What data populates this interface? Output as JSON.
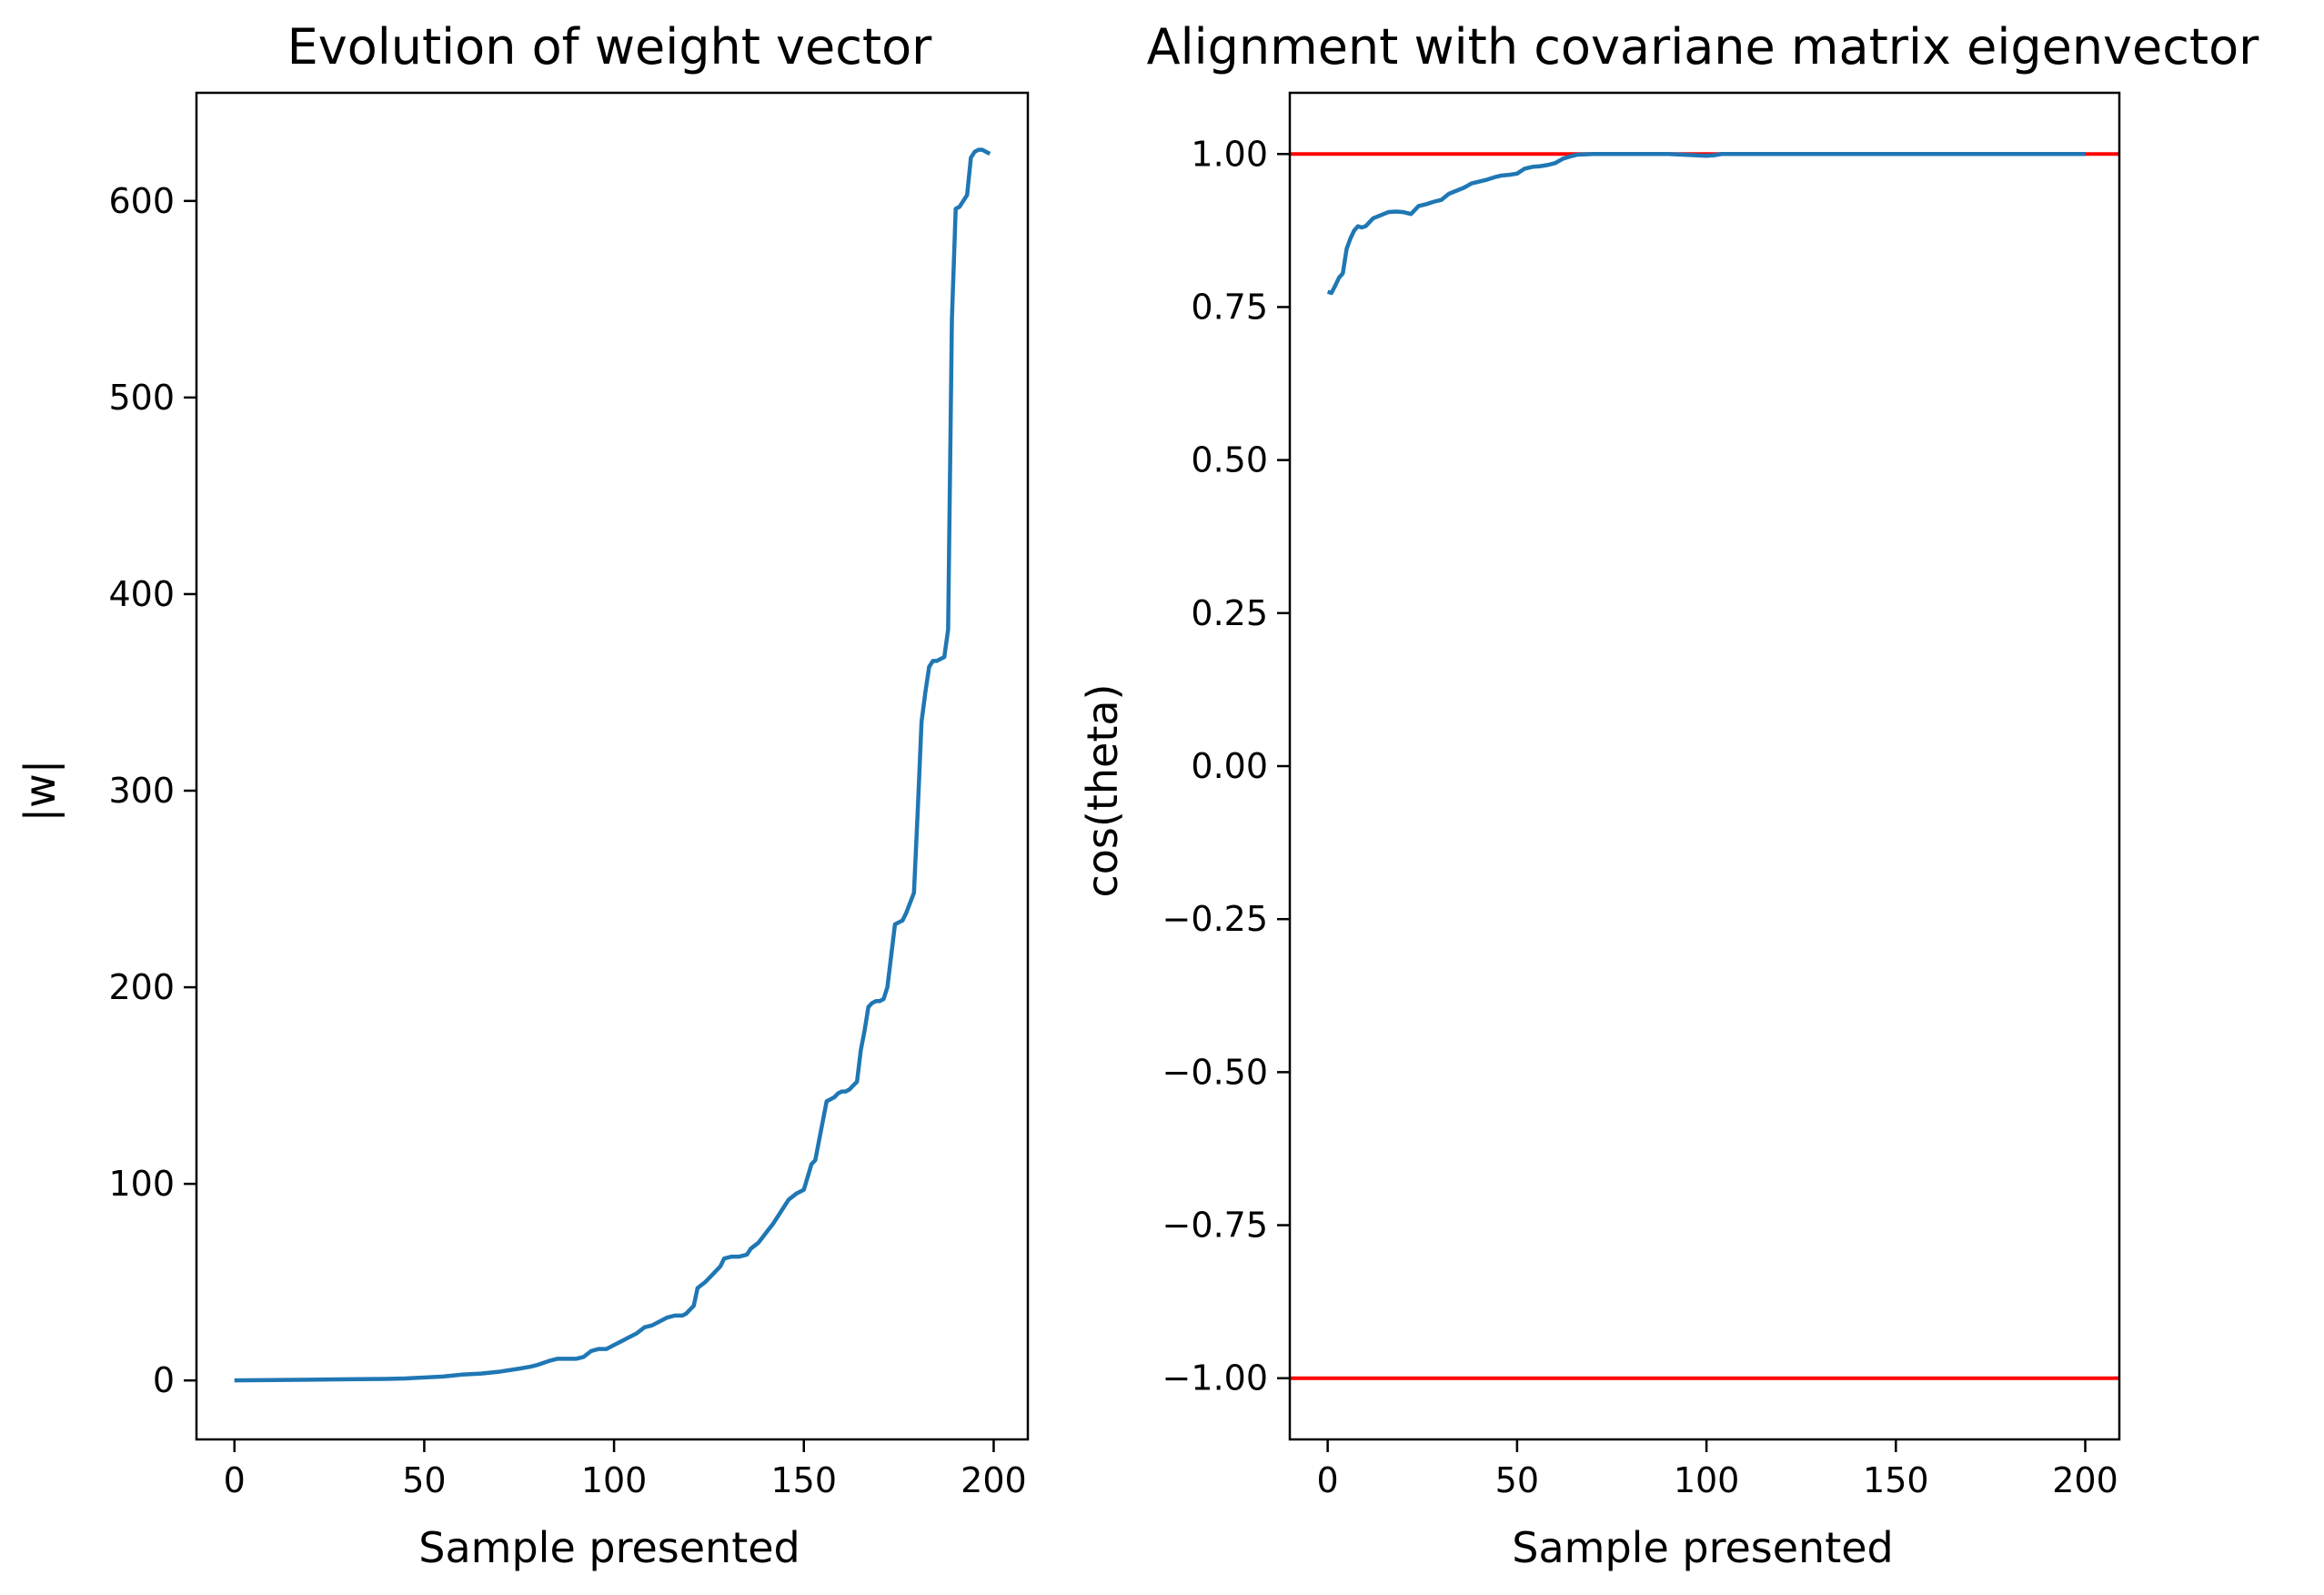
{
  "chart_data": [
    {
      "type": "line",
      "title": "Evolution of weight vector",
      "xlabel": "Sample presented",
      "ylabel": "|w|",
      "xlim": [
        -10,
        209
      ],
      "ylim": [
        -30,
        655
      ],
      "xticks": [
        0,
        50,
        100,
        150,
        200
      ],
      "xtick_labels": [
        "0",
        "50",
        "100",
        "150",
        "200"
      ],
      "yticks": [
        0,
        100,
        200,
        300,
        400,
        500,
        600
      ],
      "ytick_labels": [
        "0",
        "100",
        "200",
        "300",
        "400",
        "500",
        "600"
      ],
      "grid": false,
      "series": [
        {
          "color": "#1f77b4",
          "x": [
            0,
            10,
            20,
            30,
            40,
            45,
            50,
            55,
            60,
            65,
            70,
            75,
            78,
            80,
            83,
            85,
            88,
            90,
            92,
            94,
            96,
            98,
            100,
            102,
            104,
            106,
            108,
            110,
            112,
            114,
            116,
            118,
            119,
            121,
            122,
            124,
            126,
            128,
            129,
            131,
            133,
            135,
            136,
            138,
            140,
            142,
            144,
            146,
            148,
            149,
            150,
            152,
            153,
            154,
            156,
            157,
            158,
            159,
            160,
            161,
            162,
            163,
            164,
            165,
            166,
            167,
            168,
            169,
            170,
            171,
            172,
            174,
            175,
            176,
            177,
            179,
            180,
            181,
            182,
            183,
            184,
            185,
            186,
            187,
            188,
            189,
            190,
            191,
            192,
            193,
            194,
            195,
            196,
            197,
            198,
            199
          ],
          "y": [
            0,
            0.2,
            0.4,
            0.6,
            0.8,
            1,
            1.5,
            2,
            3,
            3.5,
            4.5,
            6,
            7,
            8,
            10,
            11,
            11,
            11,
            12,
            15,
            16,
            16,
            18,
            20,
            22,
            24,
            27,
            28,
            30,
            32,
            33,
            33,
            34,
            38,
            47,
            50,
            54,
            58,
            62,
            63,
            63,
            64,
            67,
            70,
            75,
            80,
            86,
            92,
            95,
            96,
            97,
            110,
            112,
            122,
            142,
            143,
            144,
            146,
            147,
            147,
            148,
            150,
            152,
            168,
            178,
            190,
            192,
            193,
            193,
            194,
            200,
            232,
            233,
            234,
            238,
            248,
            290,
            335,
            350,
            363,
            366,
            366,
            367,
            368,
            382,
            540,
            596,
            597,
            600,
            603,
            622,
            625,
            626,
            626,
            625,
            624
          ],
          "y_note": ""
        }
      ]
    },
    {
      "type": "line",
      "title": "Alignment with covariane matrix eigenvector",
      "xlabel": "Sample presented",
      "ylabel": "cos(theta)",
      "xlim": [
        -10,
        209
      ],
      "ylim": [
        -1.1,
        1.1
      ],
      "xticks": [
        0,
        50,
        100,
        150,
        200
      ],
      "xtick_labels": [
        "0",
        "50",
        "100",
        "150",
        "200"
      ],
      "yticks": [
        1.0,
        0.75,
        0.5,
        0.25,
        0.0,
        -0.25,
        -0.5,
        -0.75,
        -1.0
      ],
      "ytick_labels": [
        "1.00",
        "0.75",
        "0.50",
        "0.25",
        "0.00",
        "−0.25",
        "−0.50",
        "−0.75",
        "−1.00"
      ],
      "grid": false,
      "reference_lines": [
        {
          "y": 1.0,
          "color": "#ff0000"
        },
        {
          "y": -1.0,
          "color": "#ff0000"
        }
      ],
      "series": [
        {
          "color": "#1f77b4",
          "x": [
            0,
            1,
            2,
            3,
            4,
            5,
            6,
            7,
            8,
            9,
            10,
            12,
            14,
            16,
            18,
            20,
            22,
            24,
            26,
            28,
            30,
            32,
            34,
            36,
            38,
            40,
            42,
            44,
            46,
            48,
            50,
            52,
            54,
            56,
            58,
            60,
            62,
            64,
            66,
            70,
            80,
            90,
            100,
            102,
            104,
            110,
            120,
            140,
            160,
            180,
            200
          ],
          "y": [
            0.775,
            0.773,
            0.785,
            0.798,
            0.805,
            0.845,
            0.862,
            0.875,
            0.882,
            0.88,
            0.882,
            0.895,
            0.9,
            0.905,
            0.906,
            0.905,
            0.902,
            0.915,
            0.918,
            0.922,
            0.925,
            0.935,
            0.94,
            0.945,
            0.952,
            0.955,
            0.958,
            0.962,
            0.965,
            0.966,
            0.968,
            0.976,
            0.979,
            0.98,
            0.982,
            0.985,
            0.992,
            0.996,
            0.999,
            1.0,
            1.0,
            1.0,
            0.997,
            0.998,
            1.0,
            1.0,
            1.0,
            1.0,
            1.0,
            1.0,
            1.0
          ]
        }
      ]
    }
  ]
}
